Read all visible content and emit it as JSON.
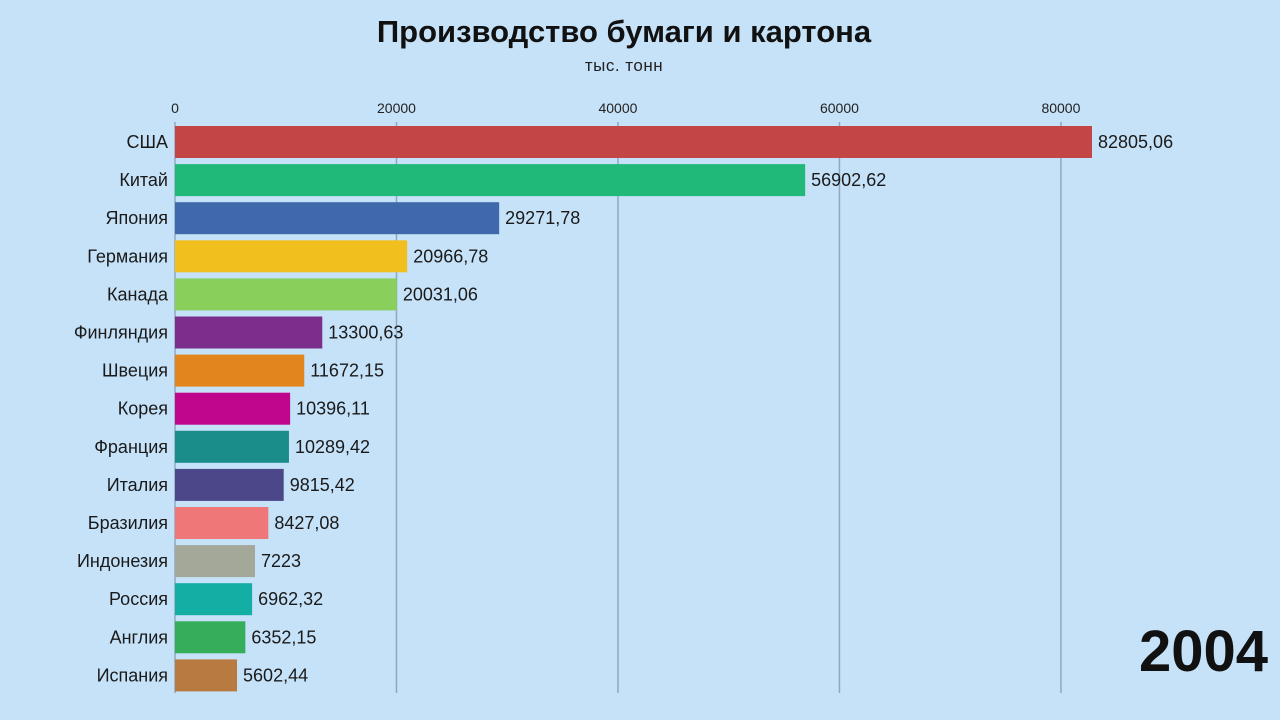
{
  "chart_data": {
    "type": "bar",
    "orientation": "horizontal",
    "title": "Производство бумаги и картона",
    "subtitle": "тыс. тонн",
    "annotation": "2004",
    "xlim": [
      0,
      82805.06
    ],
    "xticks": [
      0,
      20000,
      40000,
      60000,
      80000
    ],
    "grid": true,
    "categories": [
      "США",
      "Китай",
      "Япония",
      "Германия",
      "Канада",
      "Финляндия",
      "Швеция",
      "Корея",
      "Франция",
      "Италия",
      "Бразилия",
      "Индонезия",
      "Россия",
      "Англия",
      "Испания"
    ],
    "values": [
      82805.06,
      56902.62,
      29271.78,
      20966.78,
      20031.06,
      13300.63,
      11672.15,
      10396.11,
      10289.42,
      9815.42,
      8427.08,
      7223,
      6962.32,
      6352.15,
      5602.44
    ],
    "value_labels": [
      "82805,06",
      "56902,62",
      "29271,78",
      "20966,78",
      "20031,06",
      "13300,63",
      "11672,15",
      "10396,11",
      "10289,42",
      "9815,42",
      "8427,08",
      "7223",
      "6962,32",
      "6352,15",
      "5602,44"
    ],
    "colors": [
      "#c44545",
      "#20b97a",
      "#3f69ab",
      "#f2c01e",
      "#88cf5c",
      "#7b2e8b",
      "#e2851d",
      "#c0068c",
      "#1a8c8a",
      "#4b4789",
      "#ef7777",
      "#a3a899",
      "#13aea4",
      "#35ad5a",
      "#b87a40"
    ]
  }
}
